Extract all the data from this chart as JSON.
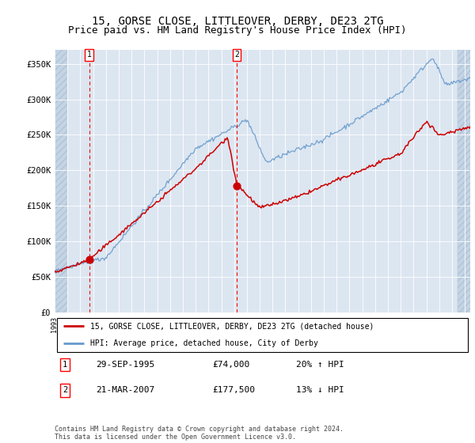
{
  "title": "15, GORSE CLOSE, LITTLEOVER, DERBY, DE23 2TG",
  "subtitle": "Price paid vs. HM Land Registry's House Price Index (HPI)",
  "ylim": [
    0,
    370000
  ],
  "yticks": [
    0,
    50000,
    100000,
    150000,
    200000,
    250000,
    300000,
    350000
  ],
  "ytick_labels": [
    "£0",
    "£50K",
    "£100K",
    "£150K",
    "£200K",
    "£250K",
    "£300K",
    "£350K"
  ],
  "plot_bg_color": "#dce6f1",
  "grid_color": "#ffffff",
  "legend_label_red": "15, GORSE CLOSE, LITTLEOVER, DERBY, DE23 2TG (detached house)",
  "legend_label_blue": "HPI: Average price, detached house, City of Derby",
  "marker1_box_date": "29-SEP-1995",
  "marker1_price": "£74,000",
  "marker1_hpi": "20% ↑ HPI",
  "marker1_value": 74000,
  "marker2_box_date": "21-MAR-2007",
  "marker2_price": "£177,500",
  "marker2_hpi": "13% ↓ HPI",
  "marker2_value": 177500,
  "footer": "Contains HM Land Registry data © Crown copyright and database right 2024.\nThis data is licensed under the Open Government Licence v3.0.",
  "red_color": "#cc0000",
  "blue_color": "#6699cc",
  "title_fontsize": 10,
  "subtitle_fontsize": 9,
  "axis_fontsize": 7.5
}
